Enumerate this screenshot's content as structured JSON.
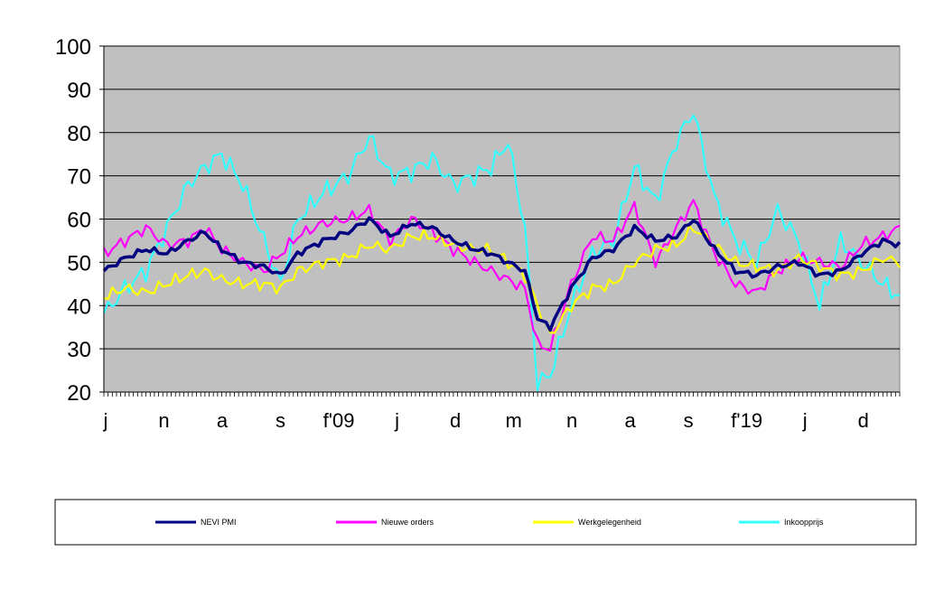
{
  "chart_data": {
    "type": "line",
    "title": "",
    "xlabel": "",
    "ylabel": "",
    "ylim": [
      20,
      100
    ],
    "yticks": [
      20,
      30,
      40,
      50,
      60,
      70,
      80,
      90,
      100
    ],
    "x_tick_labels": [
      "j",
      "n",
      "a",
      "s",
      "f'09",
      "j",
      "d",
      "m",
      "n",
      "a",
      "s",
      "f'19",
      "j",
      "d"
    ],
    "grid": true,
    "plot_background": "#c0c0c0",
    "legend_position": "bottom",
    "n_months": 189,
    "series": [
      {
        "name": "NEVI PMI",
        "color": "#000080",
        "keypoints": [
          [
            0,
            48
          ],
          [
            5,
            51
          ],
          [
            10,
            53
          ],
          [
            15,
            52
          ],
          [
            20,
            55
          ],
          [
            24,
            57
          ],
          [
            28,
            53
          ],
          [
            33,
            50
          ],
          [
            38,
            49
          ],
          [
            42,
            47
          ],
          [
            46,
            52
          ],
          [
            52,
            55
          ],
          [
            58,
            57
          ],
          [
            63,
            60
          ],
          [
            68,
            56
          ],
          [
            73,
            59
          ],
          [
            78,
            58
          ],
          [
            83,
            55
          ],
          [
            88,
            53
          ],
          [
            92,
            52
          ],
          [
            96,
            50
          ],
          [
            100,
            48
          ],
          [
            103,
            37
          ],
          [
            106,
            35
          ],
          [
            111,
            44
          ],
          [
            116,
            51
          ],
          [
            121,
            53
          ],
          [
            126,
            58
          ],
          [
            131,
            55
          ],
          [
            136,
            56
          ],
          [
            140,
            60
          ],
          [
            145,
            53
          ],
          [
            150,
            48
          ],
          [
            155,
            47
          ],
          [
            160,
            49
          ],
          [
            165,
            50
          ],
          [
            170,
            47
          ],
          [
            175,
            48
          ],
          [
            180,
            52
          ],
          [
            185,
            55
          ],
          [
            189,
            54
          ]
        ]
      },
      {
        "name": "Nieuwe orders",
        "color": "#ff00ff",
        "keypoints": [
          [
            0,
            52
          ],
          [
            5,
            55
          ],
          [
            10,
            58
          ],
          [
            15,
            54
          ],
          [
            20,
            55
          ],
          [
            24,
            58
          ],
          [
            28,
            53
          ],
          [
            33,
            50
          ],
          [
            38,
            48
          ],
          [
            42,
            52
          ],
          [
            46,
            56
          ],
          [
            52,
            59
          ],
          [
            58,
            60
          ],
          [
            63,
            62
          ],
          [
            68,
            55
          ],
          [
            73,
            60
          ],
          [
            78,
            57
          ],
          [
            83,
            53
          ],
          [
            88,
            50
          ],
          [
            92,
            48
          ],
          [
            96,
            46
          ],
          [
            100,
            44
          ],
          [
            103,
            31
          ],
          [
            106,
            30
          ],
          [
            111,
            45
          ],
          [
            116,
            56
          ],
          [
            121,
            55
          ],
          [
            126,
            63
          ],
          [
            131,
            50
          ],
          [
            136,
            58
          ],
          [
            140,
            64
          ],
          [
            145,
            52
          ],
          [
            150,
            45
          ],
          [
            155,
            43
          ],
          [
            160,
            48
          ],
          [
            165,
            51
          ],
          [
            170,
            50
          ],
          [
            175,
            49
          ],
          [
            180,
            54
          ],
          [
            185,
            56
          ],
          [
            189,
            58
          ]
        ]
      },
      {
        "name": "Werkgelegenheid",
        "color": "#ffff00",
        "keypoints": [
          [
            0,
            42
          ],
          [
            5,
            44
          ],
          [
            10,
            43
          ],
          [
            15,
            45
          ],
          [
            20,
            47
          ],
          [
            24,
            48
          ],
          [
            28,
            46
          ],
          [
            33,
            45
          ],
          [
            38,
            45
          ],
          [
            42,
            44
          ],
          [
            46,
            48
          ],
          [
            52,
            50
          ],
          [
            58,
            51
          ],
          [
            63,
            54
          ],
          [
            68,
            53
          ],
          [
            73,
            56
          ],
          [
            78,
            56
          ],
          [
            83,
            54
          ],
          [
            88,
            53
          ],
          [
            92,
            53
          ],
          [
            96,
            50
          ],
          [
            100,
            47
          ],
          [
            103,
            40
          ],
          [
            106,
            33
          ],
          [
            111,
            40
          ],
          [
            116,
            44
          ],
          [
            121,
            45
          ],
          [
            126,
            50
          ],
          [
            131,
            53
          ],
          [
            136,
            54
          ],
          [
            140,
            58
          ],
          [
            145,
            54
          ],
          [
            150,
            50
          ],
          [
            155,
            49
          ],
          [
            160,
            48
          ],
          [
            165,
            51
          ],
          [
            170,
            49
          ],
          [
            175,
            47
          ],
          [
            180,
            48
          ],
          [
            185,
            51
          ],
          [
            189,
            50
          ]
        ]
      },
      {
        "name": "Inkoopprijs",
        "color": "#33ffff",
        "keypoints": [
          [
            0,
            38
          ],
          [
            5,
            44
          ],
          [
            10,
            48
          ],
          [
            15,
            58
          ],
          [
            20,
            68
          ],
          [
            24,
            72
          ],
          [
            28,
            75
          ],
          [
            33,
            68
          ],
          [
            38,
            55
          ],
          [
            42,
            45
          ],
          [
            46,
            60
          ],
          [
            52,
            66
          ],
          [
            58,
            70
          ],
          [
            63,
            79
          ],
          [
            68,
            70
          ],
          [
            73,
            71
          ],
          [
            78,
            74
          ],
          [
            83,
            68
          ],
          [
            88,
            70
          ],
          [
            92,
            72
          ],
          [
            96,
            78
          ],
          [
            100,
            58
          ],
          [
            103,
            22
          ],
          [
            106,
            24
          ],
          [
            111,
            40
          ],
          [
            116,
            52
          ],
          [
            121,
            55
          ],
          [
            126,
            72
          ],
          [
            131,
            64
          ],
          [
            136,
            78
          ],
          [
            140,
            85
          ],
          [
            145,
            65
          ],
          [
            150,
            55
          ],
          [
            155,
            50
          ],
          [
            160,
            62
          ],
          [
            165,
            55
          ],
          [
            170,
            40
          ],
          [
            175,
            55
          ],
          [
            180,
            50
          ],
          [
            185,
            45
          ],
          [
            189,
            42
          ]
        ]
      }
    ]
  }
}
